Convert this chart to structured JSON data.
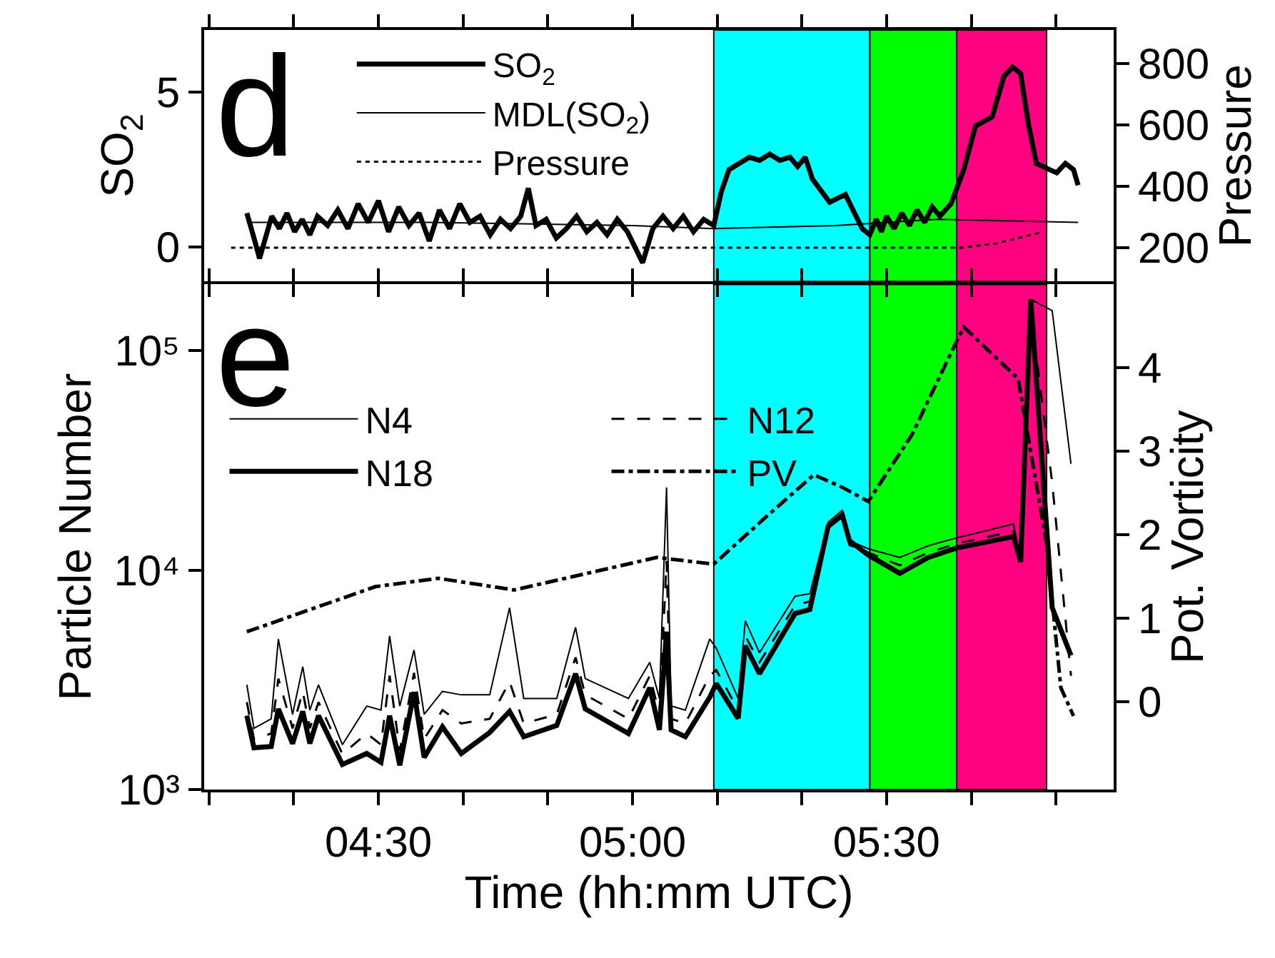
{
  "chart_data": [
    {
      "type": "line",
      "ylabel": "SO$_{2}$",
      "y2label": "Pressure",
      "annotations": [
        "d"
      ],
      "legend": "top left",
      "grid": false,
      "marker": "none",
      "tick_labels": "y",
      "xlim": [
        4.157,
        5.947
      ],
      "xticks": [
        {
          "value": 4.1667,
          "label": null
        },
        {
          "value": 4.3333,
          "label": null
        },
        {
          "value": 4.5,
          "label": null
        },
        {
          "value": 4.6667,
          "label": null
        },
        {
          "value": 4.8333,
          "label": null
        },
        {
          "value": 5.0,
          "label": null
        },
        {
          "value": 5.1667,
          "label": null
        },
        {
          "value": 5.3333,
          "label": null
        },
        {
          "value": 5.5,
          "label": null
        },
        {
          "value": 5.6667,
          "label": null
        },
        {
          "value": 5.8333,
          "label": null
        }
      ],
      "ylim": [
        -1.1,
        7
      ],
      "yticks": [
        0,
        5
      ],
      "y2lim": [
        90,
        910
      ],
      "y2ticks": [
        200,
        400,
        600,
        800
      ],
      "bands": [
        {
          "axis": "x",
          "from": 5.16,
          "to": 5.467,
          "color": "#00ffff"
        },
        {
          "axis": "x",
          "from": 5.467,
          "to": 5.638,
          "color": "#00ff00"
        },
        {
          "axis": "x",
          "from": 5.638,
          "to": 5.815,
          "color": "#ff0080"
        }
      ],
      "series": [
        {
          "name": "SO$_{2}$",
          "color": "#000000",
          "line_style": "solid",
          "x": [
            4.241,
            4.255,
            4.266,
            4.29,
            4.305,
            4.32,
            4.335,
            4.35,
            4.365,
            4.38,
            4.4,
            4.42,
            4.44,
            4.46,
            4.48,
            4.5,
            4.52,
            4.54,
            4.56,
            4.58,
            4.6,
            4.62,
            4.64,
            4.66,
            4.68,
            4.7,
            4.72,
            4.74,
            4.76,
            4.78,
            4.795,
            4.81,
            4.83,
            4.85,
            4.87,
            4.89,
            4.91,
            4.93,
            4.95,
            4.97,
            4.99,
            5.02,
            5.04,
            5.06,
            5.08,
            5.1,
            5.12,
            5.14,
            5.16,
            5.175,
            5.19,
            5.21,
            5.23,
            5.25,
            5.27,
            5.29,
            5.31,
            5.325,
            5.34,
            5.354,
            5.388,
            5.419,
            5.452,
            5.467,
            5.48,
            5.49,
            5.5,
            5.515,
            5.53,
            5.545,
            5.56,
            5.575,
            5.59,
            5.605,
            5.627,
            5.652,
            5.675,
            5.708,
            5.731,
            5.748,
            5.764,
            5.779,
            5.795,
            5.821,
            5.835,
            5.852,
            5.868,
            5.877
          ],
          "values": [
            1.1,
            0.3,
            -0.36,
            1.0,
            0.6,
            1.1,
            0.5,
            0.9,
            0.4,
            1.0,
            0.7,
            1.2,
            0.6,
            1.4,
            0.8,
            1.5,
            0.5,
            1.3,
            0.7,
            1.1,
            0.2,
            1.2,
            0.6,
            1.4,
            0.8,
            1.0,
            0.4,
            0.9,
            0.6,
            1.0,
            1.9,
            0.7,
            0.9,
            0.3,
            0.6,
            1.0,
            0.5,
            0.8,
            0.4,
            0.9,
            0.5,
            -0.5,
            0.6,
            1.0,
            0.6,
            1.0,
            0.5,
            0.9,
            0.7,
            1.8,
            2.5,
            2.7,
            2.9,
            2.8,
            3.0,
            2.8,
            2.9,
            2.6,
            2.9,
            2.2,
            1.45,
            1.7,
            0.6,
            0.4,
            0.9,
            0.5,
            1.0,
            0.6,
            1.1,
            0.7,
            1.2,
            0.8,
            1.3,
            1.0,
            1.4,
            2.5,
            3.9,
            4.2,
            5.5,
            5.8,
            5.6,
            4.0,
            2.7,
            2.5,
            2.4,
            2.7,
            2.5,
            2.0
          ]
        },
        {
          "name": "MDL(SO$_{2}$)",
          "color": "#000000",
          "line_style": "solid",
          "x": [
            4.241,
            4.6,
            5.0,
            5.16,
            5.4,
            5.6,
            5.877
          ],
          "values": [
            0.8,
            0.8,
            0.7,
            0.6,
            0.7,
            0.9,
            0.8
          ]
        },
        {
          "name": "Pressure",
          "color": "#000000",
          "line_style": "dotted",
          "axis": "y2",
          "x": [
            4.21,
            5.65,
            5.72,
            5.804
          ],
          "values": [
            200,
            200,
            215,
            250
          ]
        }
      ]
    },
    {
      "type": "line",
      "xlabel": "Time (hh:mm UTC)",
      "ylabel": "Particle Number",
      "y2label": "Pot. Vorticity",
      "annotations": [
        "e"
      ],
      "legend": "top left",
      "grid": false,
      "marker": "none",
      "log": "y",
      "xlim": [
        4.157,
        5.947
      ],
      "xticks": [
        {
          "value": 4.1667,
          "label": null
        },
        {
          "value": 4.3333,
          "label": null
        },
        {
          "value": 4.5,
          "label": "04:30"
        },
        {
          "value": 4.6667,
          "label": null
        },
        {
          "value": 4.8333,
          "label": null
        },
        {
          "value": 5.0,
          "label": "05:00"
        },
        {
          "value": 5.1667,
          "label": null
        },
        {
          "value": 5.3333,
          "label": null
        },
        {
          "value": 5.5,
          "label": "05:30"
        },
        {
          "value": 5.6667,
          "label": null
        },
        {
          "value": 5.8333,
          "label": null
        }
      ],
      "ylim": [
        1000,
        200000
      ],
      "yticks": [
        {
          "value": 1000,
          "label": "10³"
        },
        {
          "value": 10000,
          "label": "10⁴"
        },
        {
          "value": 100000,
          "label": "10⁵"
        }
      ],
      "y2lim": [
        -1.05,
        5
      ],
      "y2ticks": [
        0,
        1,
        2,
        3,
        4
      ],
      "bands": [
        {
          "axis": "x",
          "from": 5.16,
          "to": 5.467,
          "color": "#00ffff"
        },
        {
          "axis": "x",
          "from": 5.467,
          "to": 5.638,
          "color": "#00ff00"
        },
        {
          "axis": "x",
          "from": 5.638,
          "to": 5.815,
          "color": "#ff0080"
        }
      ],
      "series": [
        {
          "name": "N4",
          "color": "#000000",
          "line_style": "solid",
          "x": [
            4.241,
            4.255,
            4.289,
            4.303,
            4.331,
            4.351,
            4.365,
            4.382,
            4.429,
            4.477,
            4.505,
            4.522,
            4.542,
            4.57,
            4.59,
            4.626,
            4.663,
            4.719,
            4.758,
            4.786,
            4.851,
            4.888,
            4.907,
            4.992,
            5.034,
            5.053,
            5.067,
            5.076,
            5.104,
            5.152,
            5.165,
            5.208,
            5.222,
            5.25,
            5.32,
            5.349,
            5.385,
            5.413,
            5.427,
            5.464,
            5.526,
            5.582,
            5.638,
            5.75,
            5.764,
            5.784,
            5.826,
            5.863
          ],
          "values": [
            3000,
            1900,
            2100,
            4850,
            2200,
            3630,
            2300,
            3000,
            1600,
            2400,
            2300,
            5010,
            2400,
            4320,
            2200,
            2800,
            2700,
            2700,
            6730,
            2600,
            2600,
            5480,
            3200,
            2600,
            3800,
            2600,
            23800,
            2400,
            2300,
            4850,
            4400,
            2600,
            5870,
            4200,
            7600,
            7800,
            16500,
            18700,
            13600,
            12500,
            11400,
            12900,
            14000,
            16200,
            11000,
            171000,
            152000,
            30500
          ]
        },
        {
          "name": "N12",
          "color": "#000000",
          "line_style": "dashed",
          "x": [
            4.241,
            4.255,
            4.289,
            4.303,
            4.331,
            4.351,
            4.365,
            4.382,
            4.429,
            4.477,
            4.505,
            4.522,
            4.542,
            4.57,
            4.59,
            4.626,
            4.663,
            4.719,
            4.758,
            4.786,
            4.851,
            4.888,
            4.907,
            4.992,
            5.034,
            5.053,
            5.067,
            5.076,
            5.104,
            5.152,
            5.165,
            5.208,
            5.222,
            5.25,
            5.32,
            5.349,
            5.385,
            5.413,
            5.427,
            5.464,
            5.526,
            5.582,
            5.638,
            5.75,
            5.764,
            5.784,
            5.826,
            5.863
          ],
          "values": [
            2500,
            1700,
            1800,
            3200,
            1900,
            2800,
            1900,
            2500,
            1450,
            1800,
            1600,
            3300,
            1500,
            3400,
            1700,
            2300,
            2000,
            2100,
            3100,
            2000,
            2200,
            4000,
            2700,
            2100,
            3300,
            2200,
            11000,
            2100,
            2000,
            3300,
            3500,
            2300,
            5000,
            3800,
            6900,
            7200,
            16000,
            18200,
            13000,
            12000,
            10500,
            12000,
            13200,
            15000,
            11000,
            150000,
            25000,
            3300
          ]
        },
        {
          "name": "N18",
          "color": "#000000",
          "line_style": "solid",
          "x": [
            4.241,
            4.255,
            4.289,
            4.303,
            4.331,
            4.351,
            4.365,
            4.382,
            4.429,
            4.477,
            4.505,
            4.522,
            4.542,
            4.57,
            4.59,
            4.626,
            4.663,
            4.719,
            4.758,
            4.786,
            4.851,
            4.888,
            4.907,
            4.992,
            5.034,
            5.053,
            5.067,
            5.076,
            5.104,
            5.152,
            5.165,
            5.208,
            5.222,
            5.25,
            5.32,
            5.349,
            5.385,
            5.413,
            5.427,
            5.464,
            5.526,
            5.582,
            5.638,
            5.75,
            5.764,
            5.784,
            5.826,
            5.863
          ],
          "values": [
            2170,
            1550,
            1570,
            2330,
            1620,
            2270,
            1620,
            2170,
            1300,
            1460,
            1330,
            2170,
            1290,
            2780,
            1400,
            1930,
            1460,
            1820,
            2270,
            1740,
            1960,
            3370,
            2330,
            1800,
            2910,
            1870,
            5240,
            1870,
            1740,
            2630,
            3040,
            2110,
            4520,
            3370,
            6340,
            6600,
            15800,
            17800,
            13600,
            11700,
            9660,
            11400,
            12600,
            14200,
            10900,
            171000,
            6740,
            4080
          ]
        },
        {
          "name": "PV",
          "color": "#000000",
          "line_style": "dashdot",
          "axis": "y2",
          "x": [
            4.241,
            4.494,
            4.618,
            4.767,
            5.048,
            5.16,
            5.26,
            5.357,
            5.413,
            5.464,
            5.55,
            5.638,
            5.652,
            5.759,
            5.815,
            5.843,
            5.868
          ],
          "values": [
            0.84,
            1.38,
            1.48,
            1.34,
            1.73,
            1.65,
            2.2,
            2.72,
            2.57,
            2.4,
            3.2,
            4.32,
            4.49,
            3.87,
            1.9,
            0.17,
            -0.17
          ]
        }
      ]
    }
  ]
}
